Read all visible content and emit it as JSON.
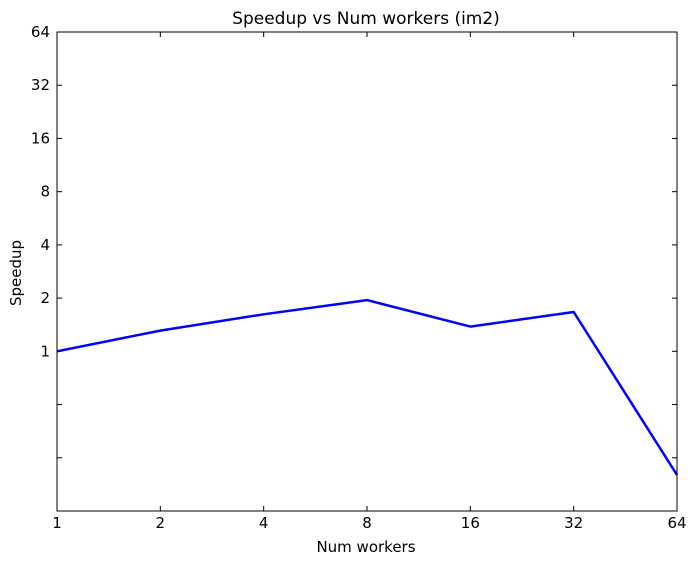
{
  "chart_data": {
    "type": "line",
    "title": "Speedup vs Num workers (im2)",
    "xlabel": "Num workers",
    "ylabel": "Speedup",
    "xscale": "log2",
    "yscale": "log2",
    "xlim": [
      1,
      64
    ],
    "ylim": [
      0.125,
      64
    ],
    "xticks": [
      1,
      2,
      4,
      8,
      16,
      32,
      64
    ],
    "xtick_labels": [
      "1",
      "2",
      "4",
      "8",
      "16",
      "32",
      "64"
    ],
    "yticks": [
      1,
      2,
      4,
      8,
      16,
      32,
      64
    ],
    "ytick_labels": [
      "1",
      "2",
      "4",
      "8",
      "16",
      "32",
      "64"
    ],
    "yticks_minor_unlabeled": [
      0.25,
      0.5
    ],
    "grid": false,
    "series": [
      {
        "color": "#0000ff",
        "x": [
          1,
          2,
          4,
          8,
          16,
          32,
          64
        ],
        "y": [
          1.0,
          1.31,
          1.62,
          1.95,
          1.38,
          1.67,
          0.2
        ]
      }
    ]
  }
}
